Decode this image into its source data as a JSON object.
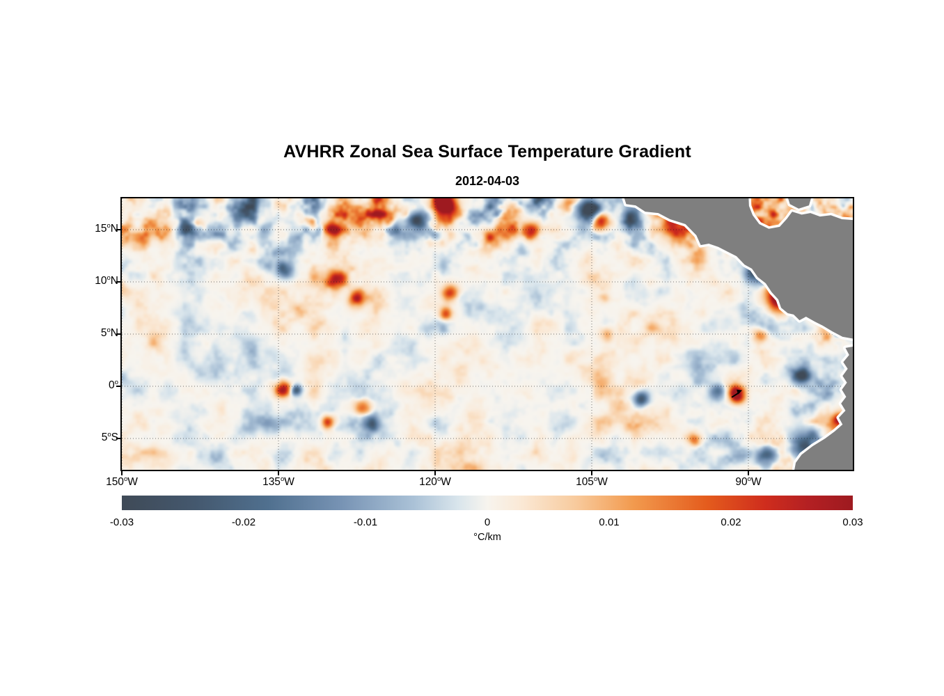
{
  "figure": {
    "title": "AVHRR Zonal Sea Surface Temperature Gradient",
    "subtitle": "2012-04-03"
  },
  "chart_data": {
    "type": "heatmap",
    "title": "AVHRR Zonal Sea Surface Temperature Gradient",
    "subtitle": "2012-04-03",
    "units": "°C/km",
    "value_range": [
      -0.03,
      0.03
    ],
    "x_axis": {
      "min_lon_w": 150,
      "max_lon_w": 80,
      "ticks": [
        {
          "lon_w": 150,
          "value": "150",
          "dir": "W",
          "label": "150°W"
        },
        {
          "lon_w": 135,
          "value": "135",
          "dir": "W",
          "label": "135°W"
        },
        {
          "lon_w": 120,
          "value": "120",
          "dir": "W",
          "label": "120°W"
        },
        {
          "lon_w": 105,
          "value": "105",
          "dir": "W",
          "label": "105°W"
        },
        {
          "lon_w": 90,
          "value": "90",
          "dir": "W",
          "label": "90°W"
        }
      ]
    },
    "y_axis": {
      "max_lat": 18,
      "min_lat": -8,
      "ticks": [
        {
          "lat": 15,
          "value": "15",
          "dir": "N",
          "label": "15°N"
        },
        {
          "lat": 10,
          "value": "10",
          "dir": "N",
          "label": "10°N"
        },
        {
          "lat": 5,
          "value": "5",
          "dir": "N",
          "label": "5°N"
        },
        {
          "lat": 0,
          "value": "0",
          "dir": "",
          "label": "0°"
        },
        {
          "lat": -5,
          "value": "5",
          "dir": "S",
          "label": "5°S"
        }
      ]
    },
    "colorbar": {
      "label": "°C/km",
      "ticks": [
        {
          "t": 0.0,
          "label": "-0.03"
        },
        {
          "t": 0.1667,
          "label": "-0.02"
        },
        {
          "t": 0.3333,
          "label": "-0.01"
        },
        {
          "t": 0.5,
          "label": "0"
        },
        {
          "t": 0.6667,
          "label": "0.01"
        },
        {
          "t": 0.8333,
          "label": "0.02"
        },
        {
          "t": 1.0,
          "label": "0.03"
        }
      ]
    },
    "colormap_stops": [
      [
        0.0,
        "#3f4a57"
      ],
      [
        0.1,
        "#44586e"
      ],
      [
        0.2,
        "#50708f"
      ],
      [
        0.3,
        "#7793b4"
      ],
      [
        0.4,
        "#abc2d7"
      ],
      [
        0.46,
        "#d9e5ec"
      ],
      [
        0.5,
        "#f7f4ee"
      ],
      [
        0.545,
        "#fae9d6"
      ],
      [
        0.62,
        "#f8cb9e"
      ],
      [
        0.7,
        "#f29a4e"
      ],
      [
        0.8,
        "#e45c1d"
      ],
      [
        0.88,
        "#cf2d1d"
      ],
      [
        0.94,
        "#b32023"
      ],
      [
        1.0,
        "#9e1a20"
      ]
    ],
    "land_color": "#7f7f7f",
    "coast_halo_color": "#ffffff",
    "grid": {
      "on": true,
      "style": "dotted"
    },
    "noise": {
      "seed": 11,
      "base_amp": 0.0105
    },
    "features": [
      [
        0.44,
        0.018,
        0.016,
        0.03
      ],
      [
        0.405,
        0.085,
        0.014,
        -0.028
      ],
      [
        0.371,
        0.123,
        0.012,
        -0.022
      ],
      [
        0.424,
        0.128,
        0.009,
        -0.02
      ],
      [
        0.529,
        0.051,
        0.013,
        0.024
      ],
      [
        0.559,
        0.115,
        0.011,
        0.022
      ],
      [
        0.5,
        0.141,
        0.009,
        0.018
      ],
      [
        0.638,
        0.038,
        0.016,
        -0.03
      ],
      [
        0.654,
        0.085,
        0.012,
        0.028
      ],
      [
        0.695,
        0.064,
        0.012,
        -0.024
      ],
      [
        0.755,
        0.103,
        0.016,
        0.028
      ],
      [
        0.786,
        0.085,
        0.012,
        0.024
      ],
      [
        0.286,
        0.115,
        0.013,
        0.022
      ],
      [
        0.257,
        0.085,
        0.009,
        0.018
      ],
      [
        0.105,
        0.103,
        0.01,
        0.016
      ],
      [
        0.019,
        0.115,
        0.009,
        -0.016
      ],
      [
        0.222,
        0.256,
        0.011,
        -0.02
      ],
      [
        0.292,
        0.295,
        0.012,
        0.026
      ],
      [
        0.321,
        0.372,
        0.011,
        0.022
      ],
      [
        0.448,
        0.346,
        0.011,
        0.02
      ],
      [
        0.443,
        0.423,
        0.009,
        0.016
      ],
      [
        0.898,
        0.359,
        0.018,
        0.032
      ],
      [
        0.867,
        0.269,
        0.014,
        -0.03
      ],
      [
        0.919,
        0.269,
        0.012,
        -0.026
      ],
      [
        0.981,
        0.474,
        0.013,
        -0.026
      ],
      [
        0.871,
        0.5,
        0.01,
        0.02
      ],
      [
        0.219,
        0.697,
        0.011,
        0.028
      ],
      [
        0.238,
        0.705,
        0.007,
        -0.022
      ],
      [
        0.329,
        0.762,
        0.011,
        0.02
      ],
      [
        0.34,
        0.828,
        0.01,
        -0.022
      ],
      [
        0.281,
        0.821,
        0.009,
        0.018
      ],
      [
        0.841,
        0.718,
        0.011,
        0.032
      ],
      [
        0.814,
        0.71,
        0.01,
        -0.022
      ],
      [
        0.71,
        0.736,
        0.01,
        -0.02
      ],
      [
        0.938,
        0.91,
        0.022,
        -0.03
      ],
      [
        0.976,
        0.962,
        0.016,
        -0.028
      ],
      [
        0.881,
        0.949,
        0.013,
        -0.024
      ],
      [
        0.981,
        0.813,
        0.01,
        0.034
      ],
      [
        0.781,
        0.885,
        0.01,
        0.018
      ],
      [
        1.0,
        0.315,
        0.01,
        0.024
      ],
      [
        0.662,
        0.5,
        0.009,
        0.014
      ],
      [
        0.929,
        0.654,
        0.012,
        -0.024
      ]
    ],
    "marker": {
      "x": 0.842,
      "y": 0.72
    },
    "land_polygons": [
      [
        [
          0.684,
          -0.03
        ],
        [
          0.69,
          0.021
        ],
        [
          0.703,
          0.026
        ],
        [
          0.716,
          0.049
        ],
        [
          0.734,
          0.054
        ],
        [
          0.75,
          0.077
        ],
        [
          0.771,
          0.095
        ],
        [
          0.786,
          0.136
        ],
        [
          0.792,
          0.172
        ],
        [
          0.803,
          0.167
        ],
        [
          0.816,
          0.179
        ],
        [
          0.829,
          0.197
        ],
        [
          0.841,
          0.213
        ],
        [
          0.852,
          0.244
        ],
        [
          0.862,
          0.259
        ],
        [
          0.87,
          0.29
        ],
        [
          0.881,
          0.313
        ],
        [
          0.889,
          0.346
        ],
        [
          0.898,
          0.372
        ],
        [
          0.902,
          0.403
        ],
        [
          0.911,
          0.423
        ],
        [
          0.919,
          0.428
        ],
        [
          0.927,
          0.449
        ],
        [
          0.936,
          0.436
        ],
        [
          0.948,
          0.454
        ],
        [
          0.959,
          0.469
        ],
        [
          0.972,
          0.49
        ],
        [
          0.986,
          0.51
        ],
        [
          1.03,
          0.531
        ],
        [
          1.03,
          0.085
        ],
        [
          0.985,
          0.077
        ],
        [
          0.97,
          0.062
        ],
        [
          0.955,
          0.067
        ],
        [
          0.942,
          0.054
        ],
        [
          0.93,
          0.06
        ],
        [
          0.917,
          0.049
        ],
        [
          0.91,
          0.075
        ],
        [
          0.9,
          0.105
        ],
        [
          0.885,
          0.112
        ],
        [
          0.872,
          0.095
        ],
        [
          0.863,
          0.062
        ],
        [
          0.858,
          0.028
        ],
        [
          0.857,
          -0.03
        ]
      ],
      [
        [
          0.908,
          -0.03
        ],
        [
          0.914,
          0.021
        ],
        [
          0.926,
          0.038
        ],
        [
          0.94,
          0.026
        ],
        [
          0.946,
          -0.03
        ]
      ],
      [
        [
          1.03,
          0.531
        ],
        [
          0.99,
          0.551
        ],
        [
          0.995,
          0.577
        ],
        [
          0.987,
          0.603
        ],
        [
          0.993,
          0.628
        ],
        [
          0.986,
          0.654
        ],
        [
          0.992,
          0.679
        ],
        [
          0.985,
          0.705
        ],
        [
          0.991,
          0.731
        ],
        [
          0.984,
          0.756
        ],
        [
          0.99,
          0.782
        ],
        [
          0.981,
          0.808
        ],
        [
          0.986,
          0.833
        ],
        [
          0.975,
          0.859
        ],
        [
          0.962,
          0.885
        ],
        [
          0.945,
          0.913
        ],
        [
          0.93,
          0.944
        ],
        [
          0.922,
          0.974
        ],
        [
          0.918,
          1.03
        ],
        [
          1.03,
          1.03
        ]
      ]
    ]
  }
}
